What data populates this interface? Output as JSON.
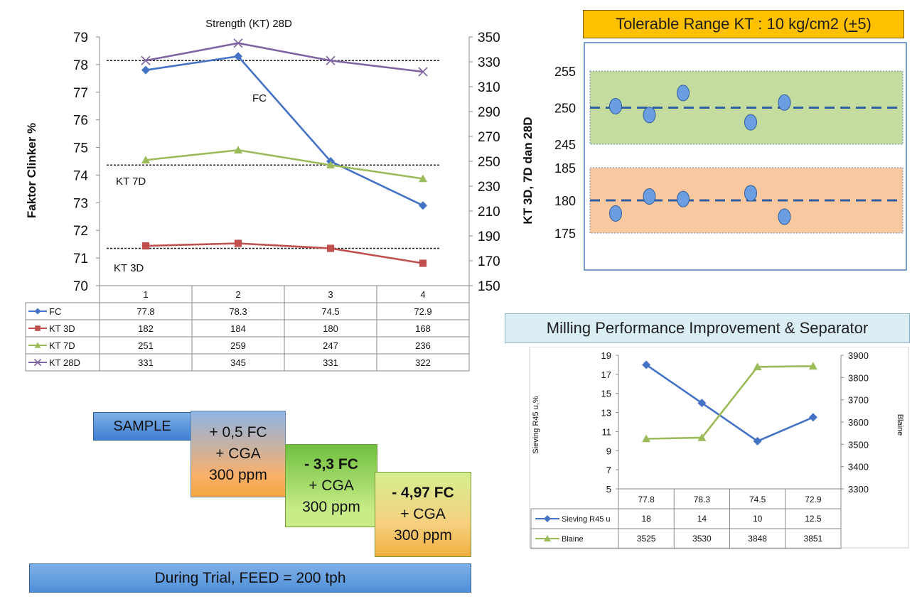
{
  "chart_data": [
    {
      "type": "line",
      "title": "Strength (KT) 28D",
      "ylabel": "Faktor Clinker %",
      "y2label": "KT 3D, 7D dan 28D",
      "ylim": [
        70,
        79
      ],
      "y2lim": [
        150,
        350
      ],
      "y_ticks": [
        "70",
        "71",
        "72",
        "73",
        "74",
        "75",
        "76",
        "77",
        "78",
        "79"
      ],
      "y2_ticks": [
        "150",
        "170",
        "190",
        "210",
        "230",
        "250",
        "270",
        "290",
        "310",
        "330",
        "350"
      ],
      "categories": [
        "1",
        "2",
        "3",
        "4"
      ],
      "series": [
        {
          "name": "FC",
          "axis": "left",
          "color": "#4472c4",
          "marker": "diamond",
          "values": [
            77.8,
            78.3,
            74.5,
            72.9
          ]
        },
        {
          "name": "KT 3D",
          "axis": "right",
          "color": "#c0504d",
          "marker": "square",
          "values": [
            182,
            184,
            180,
            168
          ]
        },
        {
          "name": "KT 7D",
          "axis": "right",
          "color": "#9bbb59",
          "marker": "triangle",
          "values": [
            251,
            259,
            247,
            236
          ]
        },
        {
          "name": "KT 28D",
          "axis": "right",
          "color": "#8064a2",
          "marker": "x",
          "values": [
            331,
            345,
            331,
            322
          ]
        }
      ],
      "table_rows": [
        {
          "name": "FC",
          "cells": [
            "77.8",
            "78.3",
            "74.5",
            "72.9"
          ]
        },
        {
          "name": "KT 3D",
          "cells": [
            "182",
            "184",
            "180",
            "168"
          ]
        },
        {
          "name": "KT 7D",
          "cells": [
            "251",
            "259",
            "247",
            "236"
          ]
        },
        {
          "name": "KT 28D",
          "cells": [
            "331",
            "345",
            "331",
            "322"
          ]
        }
      ],
      "reference_lines_right": [
        331,
        247,
        180
      ],
      "annotations": [
        "FC",
        "KT 7D",
        "KT 3D"
      ]
    },
    {
      "type": "scatter",
      "title": "Tolerable Range  KT : 10 kg/cm2 (+ 5)",
      "title_main": "Tolerable Range  KT : 10 kg/cm2 (",
      "title_pm": "+",
      "title_tail": " 5)",
      "y_ticks_upper": [
        "245",
        "250",
        "255"
      ],
      "y_ticks_lower": [
        "175",
        "180",
        "185"
      ],
      "upper_band": {
        "center": 250,
        "low": 245,
        "high": 255,
        "color": "#c4dca0"
      },
      "lower_band": {
        "center": 180,
        "low": 175,
        "high": 185,
        "color": "#f8c8a0"
      },
      "upper_points": [
        {
          "x": 1,
          "y": 250.2
        },
        {
          "x": 2,
          "y": 249
        },
        {
          "x": 3,
          "y": 252
        },
        {
          "x": 5,
          "y": 248
        },
        {
          "x": 6,
          "y": 250.7
        }
      ],
      "lower_points": [
        {
          "x": 1,
          "y": 178
        },
        {
          "x": 2,
          "y": 180.6
        },
        {
          "x": 3,
          "y": 180.2
        },
        {
          "x": 5,
          "y": 181.1
        },
        {
          "x": 6,
          "y": 177.5
        }
      ]
    },
    {
      "type": "line",
      "title": "Milling Performance Improvement & Separator",
      "ylabel": "Sieving R45 u,%",
      "y2label": "Blaine",
      "ylim": [
        5,
        19
      ],
      "y2lim": [
        3300,
        3900
      ],
      "y_ticks": [
        "5",
        "7",
        "9",
        "11",
        "13",
        "15",
        "17",
        "19"
      ],
      "y2_ticks": [
        "3300",
        "3400",
        "3500",
        "3600",
        "3700",
        "3800",
        "3900"
      ],
      "categories": [
        "77.8",
        "78.3",
        "74.5",
        "72.9"
      ],
      "series": [
        {
          "name": "Sieving R45 u",
          "axis": "left",
          "color": "#4472c4",
          "marker": "diamond",
          "values": [
            18,
            14,
            10,
            12.5
          ]
        },
        {
          "name": "Blaine",
          "axis": "right",
          "color": "#9bbb59",
          "marker": "triangle",
          "values": [
            3525,
            3530,
            3848,
            3851
          ]
        }
      ],
      "table_rows": [
        {
          "name": "Sieving R45 u",
          "cells": [
            "18",
            "14",
            "10",
            "12.5"
          ]
        },
        {
          "name": "Blaine",
          "cells": [
            "3525",
            "3530",
            "3848",
            "3851"
          ]
        }
      ]
    }
  ],
  "labels": {
    "sample": "SAMPLE",
    "step1": [
      "+ 0,5 FC",
      "+ CGA",
      "300 ppm"
    ],
    "step2": [
      "- 3,3  FC",
      "+ CGA",
      "300 ppm"
    ],
    "step3": [
      "- 4,97 FC",
      "+ CGA",
      "300 ppm"
    ],
    "trial": "During Trial, FEED = 200 tph"
  }
}
